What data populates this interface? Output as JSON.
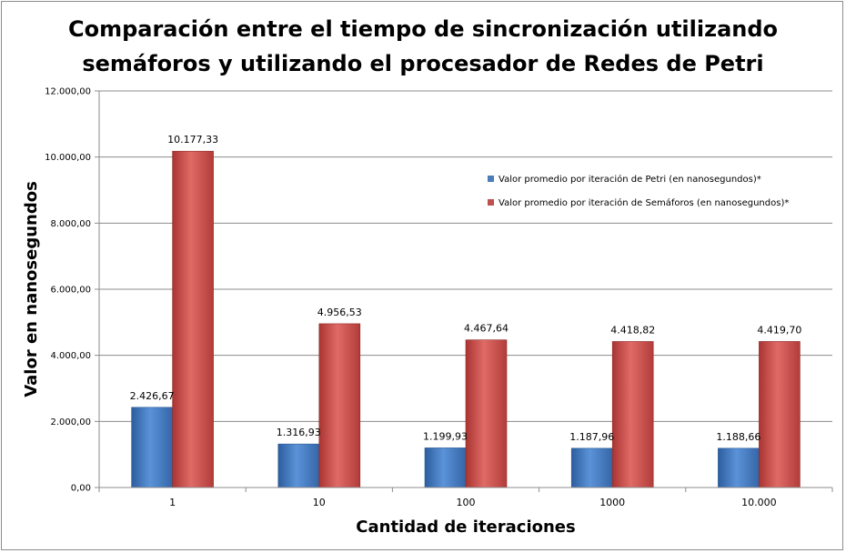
{
  "chart_data": {
    "type": "bar",
    "title_lines": [
      "Comparación entre el tiempo de sincronización utilizando",
      "semáforos y utilizando el procesador de Redes de Petri"
    ],
    "xlabel": "Cantidad de iteraciones",
    "ylabel": "Valor en nanosegundos",
    "categories": [
      "1",
      "10",
      "100",
      "1000",
      "10.000"
    ],
    "ylim": [
      0,
      12000
    ],
    "yticks": [
      0,
      2000,
      4000,
      6000,
      8000,
      10000,
      12000
    ],
    "ytick_labels": [
      "0,00",
      "2.000,00",
      "4.000,00",
      "6.000,00",
      "8.000,00",
      "10.000,00",
      "12.000,00"
    ],
    "grid": true,
    "legend_position": "right",
    "series": [
      {
        "name": "Valor promedio por iteración de Petri (en nanosegundos)*",
        "color": "#4a7ebb",
        "values": [
          2426.67,
          1316.93,
          1199.93,
          1187.96,
          1188.66
        ],
        "labels": [
          "2.426,67",
          "1.316,93",
          "1.199,93",
          "1.187,96",
          "1.188,66"
        ]
      },
      {
        "name": "Valor promedio por iteración de Semáforos (en nanosegundos)*",
        "color": "#c0504d",
        "values": [
          10177.33,
          4956.53,
          4467.64,
          4418.82,
          4419.7
        ],
        "labels": [
          "10.177,33",
          "4.956,53",
          "4.467,64",
          "4.418,82",
          "4.419,70"
        ]
      }
    ]
  }
}
